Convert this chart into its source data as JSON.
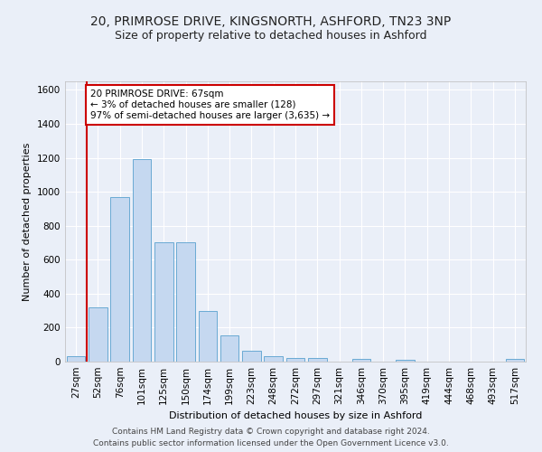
{
  "title_line1": "20, PRIMROSE DRIVE, KINGSNORTH, ASHFORD, TN23 3NP",
  "title_line2": "Size of property relative to detached houses in Ashford",
  "xlabel": "Distribution of detached houses by size in Ashford",
  "ylabel": "Number of detached properties",
  "bar_color": "#c5d8f0",
  "bar_edge_color": "#6aaad4",
  "categories": [
    "27sqm",
    "52sqm",
    "76sqm",
    "101sqm",
    "125sqm",
    "150sqm",
    "174sqm",
    "199sqm",
    "223sqm",
    "248sqm",
    "272sqm",
    "297sqm",
    "321sqm",
    "346sqm",
    "370sqm",
    "395sqm",
    "419sqm",
    "444sqm",
    "468sqm",
    "493sqm",
    "517sqm"
  ],
  "values": [
    30,
    320,
    970,
    1190,
    700,
    700,
    300,
    155,
    65,
    30,
    20,
    20,
    0,
    15,
    0,
    12,
    0,
    0,
    0,
    0,
    15
  ],
  "ylim": [
    0,
    1650
  ],
  "yticks": [
    0,
    200,
    400,
    600,
    800,
    1000,
    1200,
    1400,
    1600
  ],
  "annotation_title": "20 PRIMROSE DRIVE: 67sqm",
  "annotation_line2": "← 3% of detached houses are smaller (128)",
  "annotation_line3": "97% of semi-detached houses are larger (3,635) →",
  "vline_x": 0.5,
  "annotation_box_color": "#ffffff",
  "annotation_border_color": "#cc0000",
  "vline_color": "#cc0000",
  "footer_line1": "Contains HM Land Registry data © Crown copyright and database right 2024.",
  "footer_line2": "Contains public sector information licensed under the Open Government Licence v3.0.",
  "background_color": "#eaeff8",
  "plot_bg_color": "#eaeff8",
  "grid_color": "#ffffff",
  "title_fontsize": 10,
  "subtitle_fontsize": 9,
  "axis_label_fontsize": 8,
  "tick_fontsize": 7.5,
  "annotation_fontsize": 7.5,
  "footer_fontsize": 6.5
}
